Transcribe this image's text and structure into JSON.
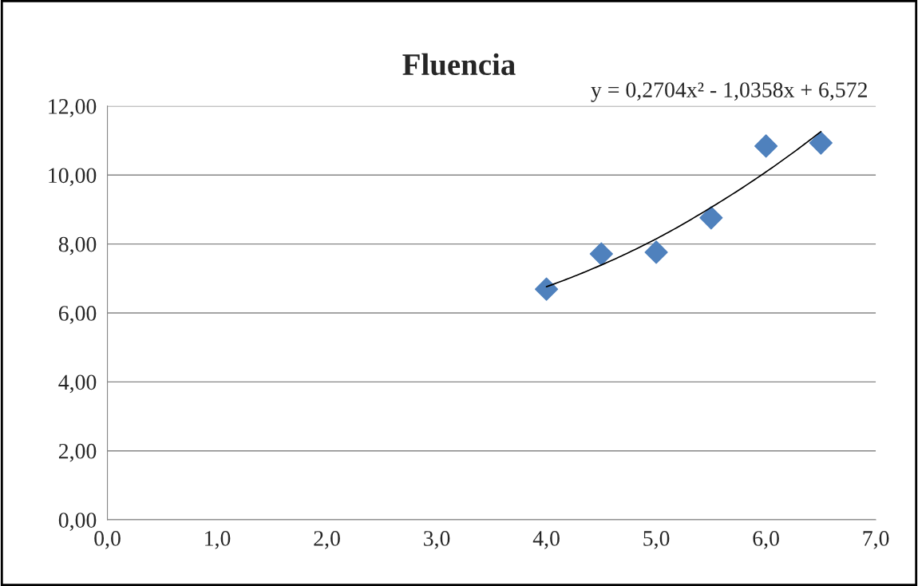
{
  "chart_data": {
    "type": "scatter",
    "title": "Fluencia",
    "annotations": [
      "y = 0,2704x² - 1,0358x + 6,572"
    ],
    "series": [
      {
        "color": "#4f81bd",
        "marker": "diamond",
        "x": [
          4.0,
          4.5,
          5.0,
          5.5,
          6.0,
          6.5
        ],
        "values": [
          6.69,
          7.71,
          7.76,
          8.76,
          10.84,
          10.93
        ]
      },
      {
        "type": "line",
        "color": "#000000",
        "marker": "none",
        "line_style": "solid",
        "x": [
          4.0,
          4.5,
          5.0,
          5.5,
          6.0,
          6.5
        ],
        "values": [
          6.76,
          7.39,
          8.15,
          9.06,
          10.09,
          11.26
        ]
      }
    ],
    "xlim": [
      0,
      7
    ],
    "ylim": [
      0,
      12
    ],
    "xticks": [
      {
        "value": 0,
        "label": "0,0"
      },
      {
        "value": 1,
        "label": "1,0"
      },
      {
        "value": 2,
        "label": "2,0"
      },
      {
        "value": 3,
        "label": "3,0"
      },
      {
        "value": 4,
        "label": "4,0"
      },
      {
        "value": 5,
        "label": "5,0"
      },
      {
        "value": 6,
        "label": "6,0"
      },
      {
        "value": 7,
        "label": "7,0"
      }
    ],
    "yticks": [
      {
        "value": 0,
        "label": "0,00"
      },
      {
        "value": 2,
        "label": "2,00"
      },
      {
        "value": 4,
        "label": "4,00"
      },
      {
        "value": 6,
        "label": "6,00"
      },
      {
        "value": 8,
        "label": "8,00"
      },
      {
        "value": 10,
        "label": "10,00"
      },
      {
        "value": 12,
        "label": "12,00"
      }
    ],
    "grid": "y",
    "legend": false
  }
}
